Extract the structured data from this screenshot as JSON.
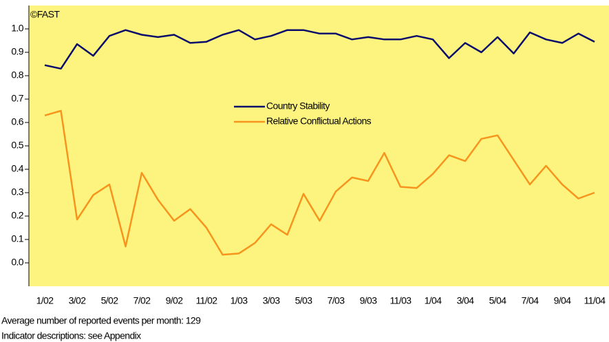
{
  "chart_data": {
    "type": "line",
    "annotation": "©FAST",
    "footnotes": [
      "Average number of reported events per month: 129",
      "Indicator descriptions: see Appendix"
    ],
    "categories": [
      "1/02",
      null,
      "3/02",
      null,
      "5/02",
      null,
      "7/02",
      null,
      "9/02",
      null,
      "11/02",
      null,
      "1/03",
      null,
      "3/03",
      null,
      "5/03",
      null,
      "7/03",
      null,
      "9/03",
      null,
      "11/03",
      null,
      "1/04",
      null,
      "3/04",
      null,
      "5/04",
      null,
      "7/04",
      null,
      "9/04",
      null,
      "11/04"
    ],
    "series": [
      {
        "name": "Country Stability",
        "color": "#0b0b6b",
        "values": [
          0.845,
          0.83,
          0.935,
          0.885,
          0.97,
          0.995,
          0.975,
          0.965,
          0.975,
          0.94,
          0.945,
          0.975,
          0.995,
          0.955,
          0.97,
          0.995,
          0.995,
          0.98,
          0.98,
          0.955,
          0.965,
          0.955,
          0.955,
          0.97,
          0.955,
          0.875,
          0.94,
          0.9,
          0.965,
          0.895,
          0.985,
          0.955,
          0.94,
          0.98,
          0.945
        ]
      },
      {
        "name": "Relative Conflictual Actions",
        "color": "#f7941d",
        "values": [
          0.63,
          0.65,
          0.185,
          0.29,
          0.335,
          0.07,
          0.385,
          0.27,
          0.18,
          0.23,
          0.15,
          0.035,
          0.04,
          0.085,
          0.165,
          0.12,
          0.295,
          0.18,
          0.305,
          0.365,
          0.35,
          0.47,
          0.325,
          0.32,
          0.38,
          0.46,
          0.435,
          0.53,
          0.545,
          0.44,
          0.335,
          0.415,
          0.335,
          0.275,
          0.3
        ]
      }
    ],
    "ylim": [
      -0.1,
      1.1
    ],
    "yticks": [
      {
        "value": 0,
        "label": "0.0"
      },
      0.1,
      0.2,
      0.3,
      0.4,
      0.5,
      0.6,
      0.7,
      0.8,
      0.9,
      {
        "value": 1,
        "label": "1.0"
      }
    ],
    "legend": "center",
    "background": "#fdf47f"
  }
}
